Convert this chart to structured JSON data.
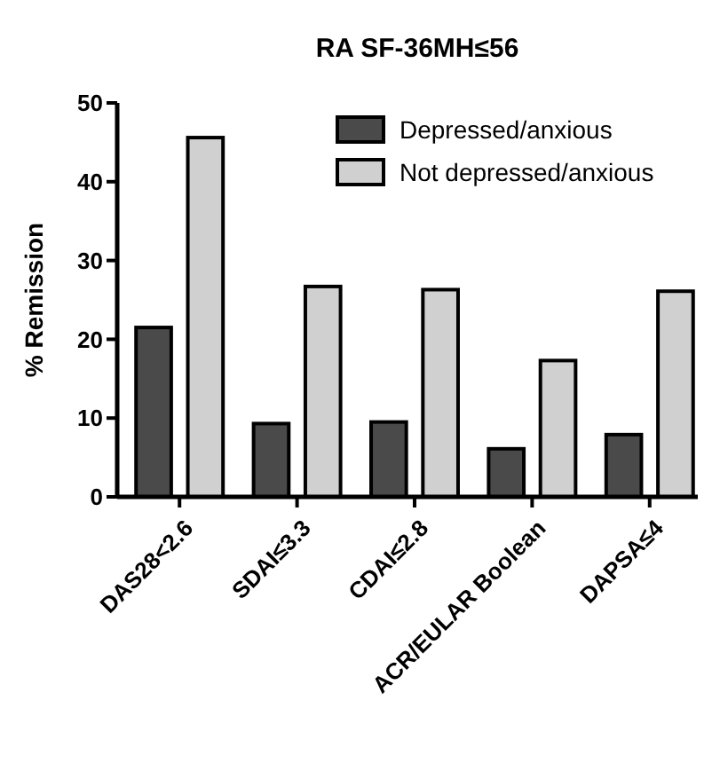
{
  "chart_data": {
    "type": "bar",
    "title": "RA SF-36MH≤56",
    "ylabel": "% Remission",
    "categories": [
      "DAS28<2.6",
      "SDAI≤3.3",
      "CDAI≤2.8",
      "ACR/EULAR Boolean",
      "DAPSA≤4"
    ],
    "series": [
      {
        "name": "Depressed/anxious",
        "color": "#4a4a4a",
        "values": [
          21.5,
          9.3,
          9.5,
          6.1,
          7.9
        ]
      },
      {
        "name": "Not depressed/anxious",
        "color": "#d0d0d0",
        "values": [
          45.6,
          26.7,
          26.3,
          17.3,
          26.1
        ]
      }
    ],
    "ylim": [
      0,
      50
    ],
    "yticks": [
      0,
      10,
      20,
      30,
      40,
      50
    ],
    "grid": false,
    "legend": "top right"
  }
}
